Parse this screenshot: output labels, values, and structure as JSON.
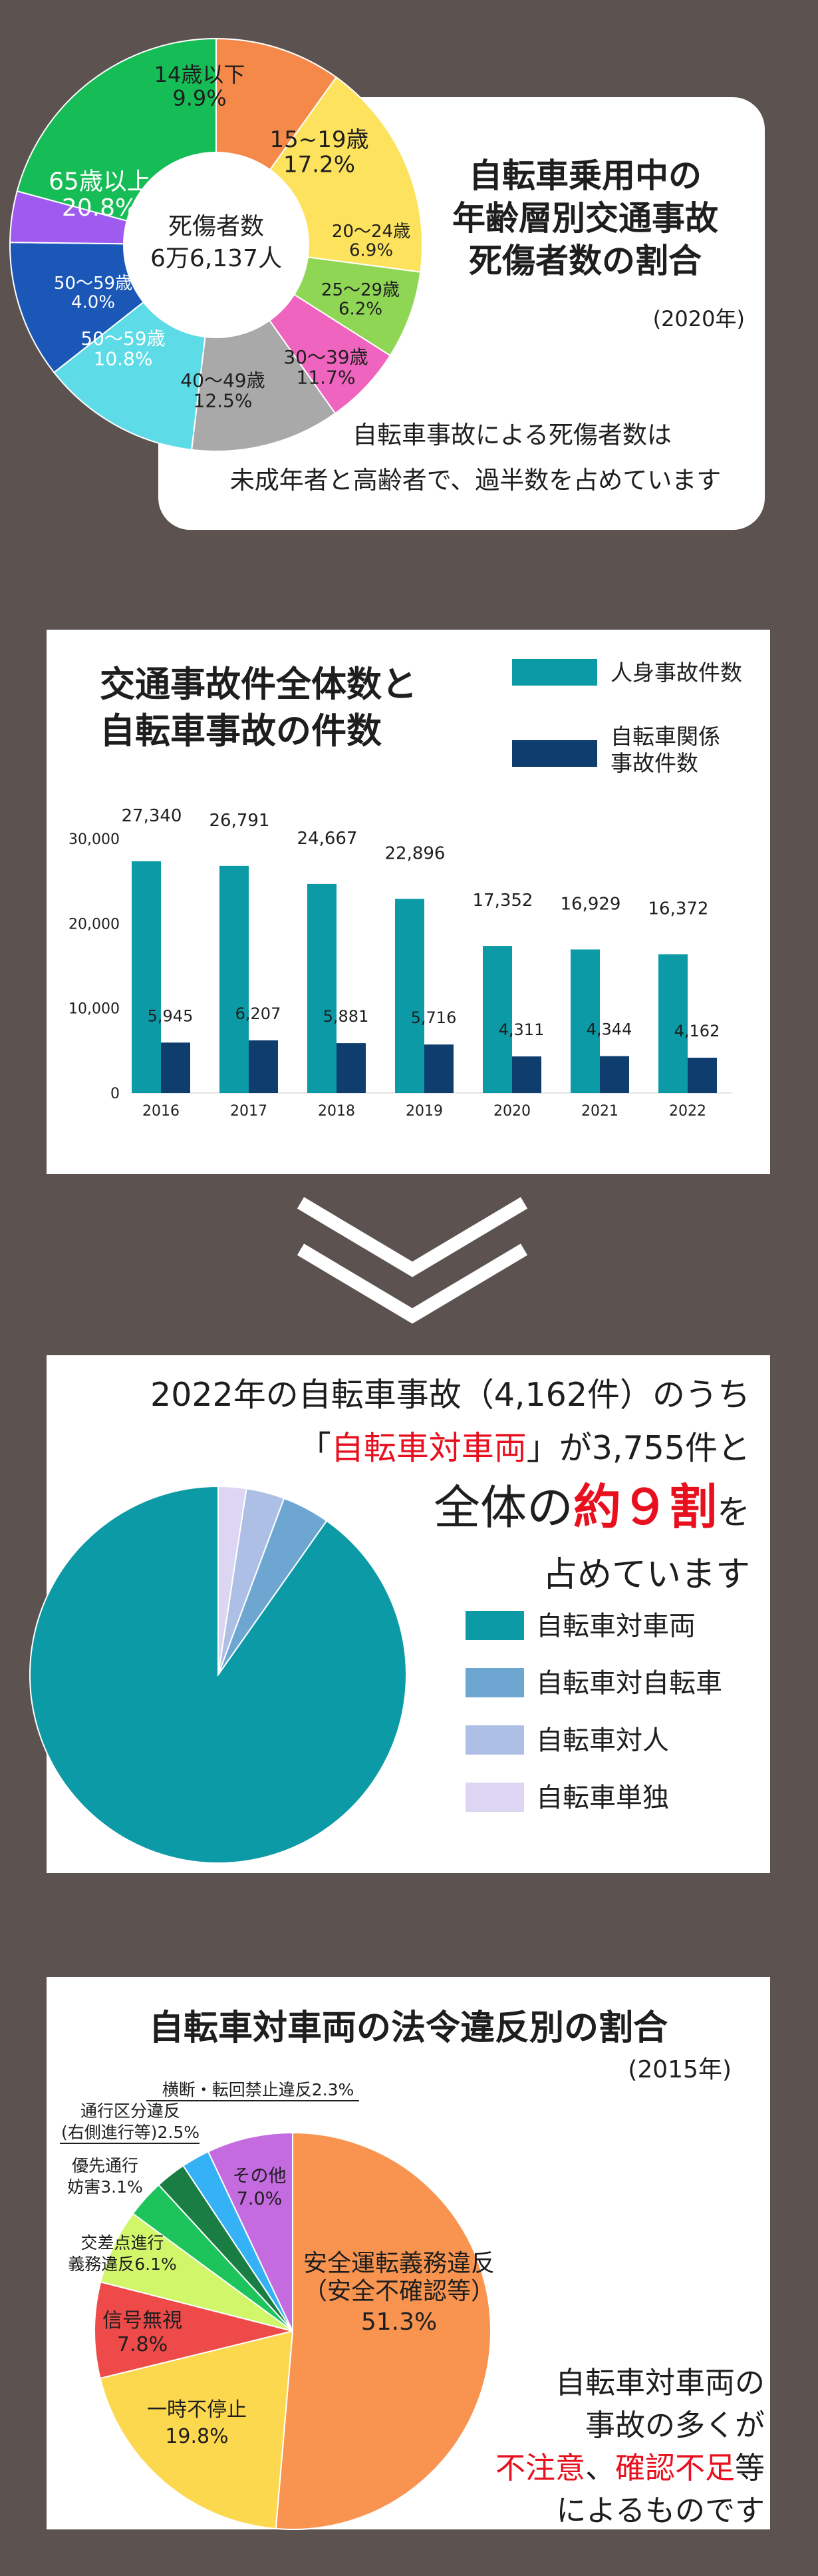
{
  "colors": {
    "background": "#5c5250",
    "teal": "#0b9aa6",
    "navy": "#0e3d6e",
    "accent_red": "#e8101e"
  },
  "panel1": {
    "title_lines": [
      "自転車乗用中の",
      "年齢層別交通事故",
      "死傷者数の割合"
    ],
    "year": "(2020年)",
    "center_line1": "死傷者数",
    "center_line2": "6万6,137人",
    "caption_lines": [
      "自転車事故による死傷者数は",
      "未成年者と高齢者で、過半数を占めています"
    ]
  },
  "panel2": {
    "title_lines": [
      "交通事故件全体数と",
      "自転車事故の件数"
    ]
  },
  "panel3": {
    "headline1": "2022年の自転車事故（4,162件）のうち",
    "headline2_pre": "「",
    "headline2_red": "自転車対車両",
    "headline2_post": "」が3,755件と",
    "headline3_pre": "全体の",
    "headline3_red": "約９割",
    "headline3_post": "を",
    "headline4": "占めています"
  },
  "panel4": {
    "title": "自転車対車両の法令違反別の割合",
    "year": "(2015年)",
    "caption1": "自転車対車両の",
    "caption2": "事故の多くが",
    "caption3_red1": "不注意",
    "caption3_mid": "、",
    "caption3_red2": "確認不足",
    "caption3_post": "等",
    "caption4": "によるものです"
  },
  "chart_data": [
    {
      "type": "pie",
      "variant": "donut",
      "categories": [
        "14歳以下",
        "15~19歳",
        "20〜24歳",
        "25〜29歳",
        "30〜39歳",
        "40〜49歳",
        "50〜59歳",
        "50〜59歳",
        "65歳以上"
      ],
      "values": [
        9.9,
        17.2,
        6.9,
        6.2,
        11.7,
        12.5,
        10.8,
        4.0,
        20.8
      ],
      "value_labels": [
        "9.9%",
        "17.2%",
        "6.9%",
        "6.2%",
        "11.7%",
        "12.5%",
        "10.8%",
        "4.0%",
        "20.8%"
      ],
      "colors": [
        "#f5894a",
        "#fde25e",
        "#8fd655",
        "#ef64be",
        "#a9a9a9",
        "#5ddbe6",
        "#1a57b6",
        "#9f5af0",
        "#16bc56"
      ]
    },
    {
      "type": "bar",
      "categories": [
        "2016",
        "2017",
        "2018",
        "2019",
        "2020",
        "2021",
        "2022"
      ],
      "series": [
        {
          "name": "人身事故件数",
          "values": [
            27340,
            26791,
            24667,
            22896,
            17352,
            16929,
            16372
          ],
          "labels": [
            "27,340",
            "26,791",
            "24,667",
            "22,896",
            "17,352",
            "16,929",
            "16,372"
          ],
          "color": "#0b9aa6"
        },
        {
          "name": "自転車関係事故件数",
          "values": [
            5945,
            6207,
            5881,
            5716,
            4311,
            4344,
            4162
          ],
          "labels": [
            "5,945",
            "6,207",
            "5,881",
            "5,716",
            "4,311",
            "4,344",
            "4,162"
          ],
          "color": "#0e3d6e"
        }
      ],
      "legend_lines": [
        [
          "人身事故件数"
        ],
        [
          "自転車関係",
          "事故件数"
        ]
      ],
      "ylim": [
        0,
        30000
      ],
      "yticks": [
        0,
        10000,
        20000,
        30000
      ],
      "ytick_labels": [
        "0",
        "10,000",
        "20,000",
        "30,000"
      ],
      "legend_position": "top-right",
      "grid": false
    },
    {
      "type": "pie",
      "categories": [
        "自転車対車両",
        "自転車対自転車",
        "自転車対人",
        "自転車単独"
      ],
      "values": [
        3755,
        170,
        137,
        100
      ],
      "colors": [
        "#0b9aa6",
        "#6ea6d2",
        "#aebfe6",
        "#dcd6f2"
      ],
      "legend_position": "right"
    },
    {
      "type": "pie",
      "categories": [
        "安全運転義務違反（安全不確認等）",
        "一時不停止",
        "信号無視",
        "交差点進行義務違反",
        "優先通行妨害",
        "通行区分違反（右側進行等）",
        "横断・転回禁止違反",
        "その他"
      ],
      "values": [
        51.3,
        19.8,
        7.8,
        6.1,
        3.1,
        2.5,
        2.3,
        7.0
      ],
      "colors": [
        "#f89450",
        "#fcd84e",
        "#ef4a4a",
        "#d1f66a",
        "#1dc45c",
        "#1a7d44",
        "#35b1f5",
        "#c46be0"
      ],
      "labels": {
        "s0_l1": "安全運転義務違反",
        "s0_l2": "（安全不確認等）",
        "s0_l3": "51.3%",
        "s1_l1": "一時不停止",
        "s1_l2": "19.8%",
        "s2_l1": "信号無視",
        "s2_l2": "7.8%",
        "s3_l1": "交差点進行",
        "s3_l2": "義務違反6.1%",
        "s4_l1": "優先通行",
        "s4_l2": "妨害3.1%",
        "s5_l1": "通行区分違反",
        "s5_l2": "(右側進行等)2.5%",
        "s6_l1": "横断・転回禁止違反2.3%",
        "s7_l1": "その他",
        "s7_l2": "7.0%"
      }
    }
  ]
}
